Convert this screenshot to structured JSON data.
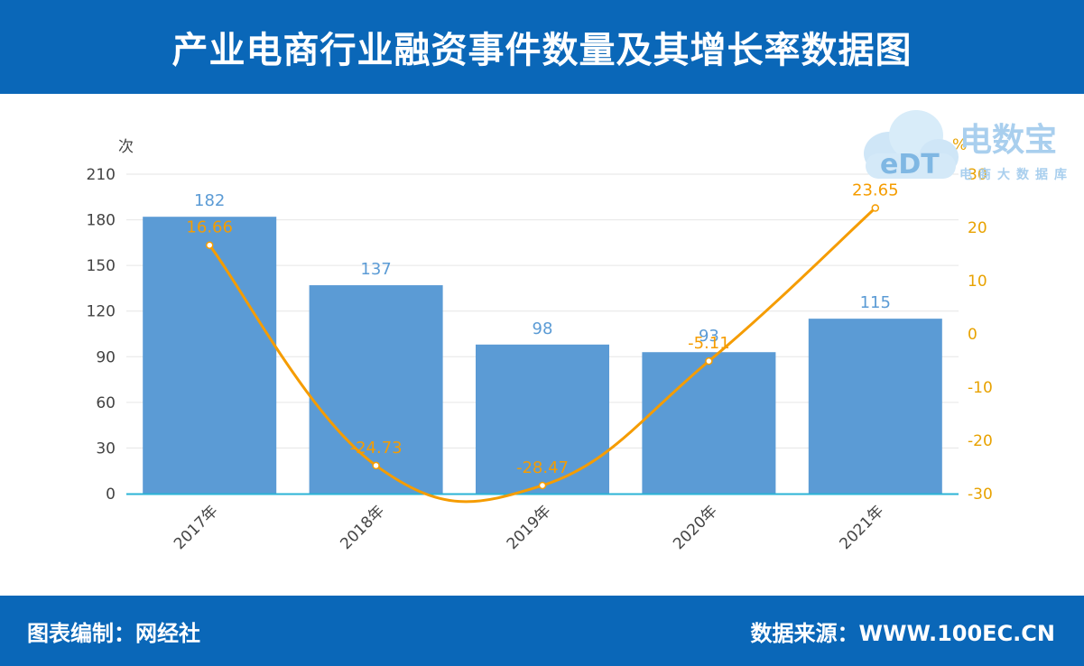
{
  "header": {
    "title": "产业电商行业融资事件数量及其增长率数据图"
  },
  "footer": {
    "compiler_label": "图表编制：",
    "compiler_value": "网经社",
    "source_label": "数据来源：",
    "source_value": "WWW.100EC.CN"
  },
  "logo": {
    "brand": "电数宝",
    "tagline": "电商大数据库",
    "mark": "eDT"
  },
  "colors": {
    "header_bg": "#0a67b8",
    "bar": "#5b9bd5",
    "bar_label": "#5b9bd5",
    "line": "#f59c00",
    "axis_left_text": "#444444",
    "axis_right_text": "#e8a200",
    "baseline": "#2bb3d6",
    "grid": "#e6e6e6"
  },
  "chart_data": {
    "type": "bar+line",
    "categories": [
      "2017年",
      "2018年",
      "2019年",
      "2020年",
      "2021年"
    ],
    "series": [
      {
        "type": "bar",
        "axis": "left",
        "values": [
          182,
          137,
          98,
          93,
          115
        ],
        "labels": [
          "182",
          "137",
          "98",
          "93",
          "115"
        ]
      },
      {
        "type": "line",
        "axis": "right",
        "smooth": true,
        "values": [
          16.66,
          -24.73,
          -28.47,
          -5.11,
          23.65
        ],
        "labels": [
          "16.66",
          "-24.73",
          "-28.47",
          "-5.11",
          "23.65"
        ]
      }
    ],
    "y_left": {
      "unit": "次",
      "range": [
        0,
        210
      ],
      "ticks": [
        "0",
        "30",
        "60",
        "90",
        "120",
        "150",
        "180",
        "210"
      ]
    },
    "y_right": {
      "unit": "%",
      "range": [
        -30,
        30
      ],
      "ticks": [
        "-30",
        "-20",
        "-10",
        "0",
        "10",
        "20",
        "30"
      ]
    },
    "grid": true
  }
}
